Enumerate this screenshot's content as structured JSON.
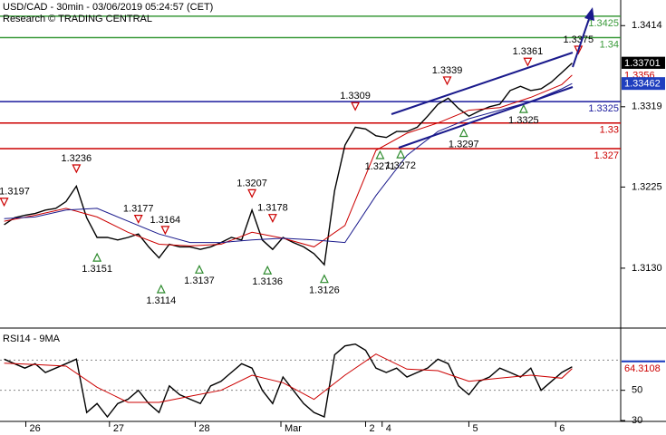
{
  "chart_data": [
    {
      "type": "line",
      "title": "USD/CAD - 30min - 03/06/2019 05:24:57 (CET)",
      "subtitle": "Research © TRADING CENTRAL",
      "xlim": [
        -0.4,
        59.7
      ],
      "ylim": [
        1.3062,
        1.3444
      ],
      "yticks": [
        1.3414,
        1.3319,
        1.3225,
        {
          "value": 1.313,
          "label": "1.3130"
        }
      ],
      "series": [
        {
          "color": "#000000",
          "tag": "box",
          "tag_color": "#000000",
          "x": [
            0,
            1,
            2,
            3,
            4,
            5,
            6,
            7,
            8,
            9,
            10,
            11,
            12,
            13,
            14,
            15,
            16,
            17,
            18,
            19,
            20,
            21,
            22,
            23,
            24,
            25,
            26,
            27,
            28,
            29,
            30,
            31,
            32,
            33,
            34,
            35,
            36,
            37,
            38,
            39,
            40,
            41,
            42,
            43,
            44,
            45,
            46,
            47,
            48,
            49,
            50,
            51,
            52,
            53,
            54,
            55
          ],
          "values": [
            1.3181,
            1.3189,
            1.3192,
            1.3194,
            1.3198,
            1.32,
            1.3208,
            1.3226,
            1.3189,
            1.3166,
            1.3166,
            1.3163,
            1.3166,
            1.317,
            1.3155,
            1.3142,
            1.3158,
            1.3155,
            1.3155,
            1.3152,
            1.3155,
            1.316,
            1.3166,
            1.3163,
            1.3198,
            1.3163,
            1.3152,
            1.3166,
            1.316,
            1.3155,
            1.3147,
            1.3134,
            1.3221,
            1.3274,
            1.3295,
            1.3293,
            1.3285,
            1.3283,
            1.329,
            1.329,
            1.3295,
            1.3308,
            1.3322,
            1.3329,
            1.3317,
            1.3308,
            1.3314,
            1.3319,
            1.3322,
            1.3338,
            1.3343,
            1.3338,
            1.334,
            1.3348,
            1.3359,
            1.33701
          ]
        },
        {
          "color": "#cc0000",
          "tag": "text",
          "tag_color": "#cc0000",
          "x": [
            0,
            3,
            6,
            9,
            12,
            15,
            18,
            21,
            24,
            27,
            30,
            33,
            36,
            39,
            42,
            45,
            48,
            51,
            54,
            55
          ],
          "values": [
            1.3185,
            1.3192,
            1.32,
            1.319,
            1.3172,
            1.3158,
            1.3156,
            1.3158,
            1.3172,
            1.3165,
            1.3155,
            1.318,
            1.3268,
            1.3288,
            1.33,
            1.3315,
            1.3318,
            1.333,
            1.3345,
            1.3356
          ]
        },
        {
          "color": "#1a1a8c",
          "tag": "box",
          "tag_color": "#1f3fbf",
          "x": [
            0,
            3,
            6,
            9,
            12,
            15,
            18,
            21,
            24,
            27,
            30,
            33,
            36,
            39,
            42,
            45,
            48,
            51,
            54,
            55
          ],
          "values": [
            1.3188,
            1.319,
            1.3198,
            1.32,
            1.3185,
            1.317,
            1.316,
            1.316,
            1.3163,
            1.3165,
            1.3163,
            1.316,
            1.3215,
            1.3262,
            1.329,
            1.3305,
            1.3315,
            1.3325,
            1.334,
            1.33462
          ]
        }
      ],
      "levels": [
        {
          "value": 1.3425,
          "color": "#3a9a3a"
        },
        {
          "value": 1.34,
          "color": "#3a9a3a"
        },
        {
          "value": 1.3325,
          "color": "#1a1a9c"
        },
        {
          "value": 1.33,
          "color": "#cc0000"
        },
        {
          "value": 1.327,
          "color": "#cc0000"
        }
      ],
      "pivot_highs": [
        {
          "x": 0,
          "value": 1.3197
        },
        {
          "x": 7,
          "value": 1.3236
        },
        {
          "x": 13,
          "value": 1.3177
        },
        {
          "x": 15.6,
          "value": 1.3164
        },
        {
          "x": 24,
          "value": 1.3207
        },
        {
          "x": 26,
          "value": 1.3178
        },
        {
          "x": 34,
          "value": 1.3309
        },
        {
          "x": 42.9,
          "value": 1.3339
        },
        {
          "x": 50.7,
          "value": 1.3361
        },
        {
          "x": 55.6,
          "value": 1.3375
        }
      ],
      "pivot_lows": [
        {
          "x": 9,
          "value": 1.3151
        },
        {
          "x": 15.2,
          "value": 1.3114
        },
        {
          "x": 18.9,
          "value": 1.3137
        },
        {
          "x": 25.5,
          "value": 1.3136
        },
        {
          "x": 31,
          "value": 1.3126
        },
        {
          "x": 36.4,
          "value": 1.3271
        },
        {
          "x": 38.4,
          "value": 1.3272
        },
        {
          "x": 44.5,
          "value": 1.3297
        },
        {
          "x": 50.3,
          "value": 1.3325
        }
      ]
    },
    {
      "type": "line",
      "title": "RSI14 - 9MA",
      "xlim": [
        -0.4,
        59.7
      ],
      "ylim": [
        29.4,
        88.2
      ],
      "yticks": [
        30,
        50
      ],
      "levels": [
        70,
        50
      ],
      "xticks": [
        {
          "value": 2.1,
          "label": "26"
        },
        {
          "value": 10.2,
          "label": "27"
        },
        {
          "value": 18.5,
          "label": "28"
        },
        {
          "value": 26.8,
          "label": "Mar"
        },
        {
          "value": 35.0,
          "label": "2"
        },
        {
          "value": 36.6,
          "label": "4"
        },
        {
          "value": 45.0,
          "label": "5"
        },
        {
          "value": 53.4,
          "label": "6"
        }
      ],
      "series": [
        {
          "color": "#000000",
          "tag": "box",
          "tag_color": "#1f3fbf",
          "x": [
            0,
            1,
            2,
            3,
            4,
            5,
            6,
            7,
            8,
            9,
            10,
            11,
            12,
            13,
            14,
            15,
            16,
            17,
            18,
            19,
            20,
            21,
            22,
            23,
            24,
            25,
            26,
            27,
            28,
            29,
            30,
            31,
            32,
            33,
            34,
            35,
            36,
            37,
            38,
            39,
            40,
            41,
            42,
            43,
            44,
            45,
            46,
            47,
            48,
            49,
            50,
            51,
            52,
            53,
            54,
            55
          ],
          "values": [
            70.6,
            67.6,
            64.7,
            67.6,
            61.8,
            64.7,
            67.6,
            70.6,
            35.3,
            41.2,
            32.4,
            41.2,
            44.1,
            50.0,
            41.2,
            35.3,
            52.9,
            47.1,
            44.1,
            41.2,
            52.9,
            55.9,
            61.8,
            67.6,
            64.7,
            50.0,
            41.2,
            58.8,
            50.0,
            41.2,
            35.3,
            32.4,
            73.5,
            79.4,
            80.6,
            76.5,
            64.7,
            61.8,
            64.7,
            58.8,
            61.8,
            64.7,
            70.6,
            67.6,
            52.9,
            47.1,
            55.9,
            58.8,
            64.7,
            61.8,
            58.8,
            64.7,
            50.0,
            55.9,
            61.8,
            65.5846
          ]
        },
        {
          "color": "#cc0000",
          "tag": "text",
          "tag_color": "#cc0000",
          "x": [
            0,
            3,
            6,
            9,
            12,
            15,
            18,
            21,
            24,
            27,
            30,
            33,
            36,
            39,
            42,
            45,
            48,
            51,
            54,
            55
          ],
          "values": [
            68,
            67,
            66,
            52,
            42,
            42,
            46,
            50,
            60,
            55,
            44,
            60,
            74,
            64,
            63,
            56,
            58,
            60,
            58,
            64.3108
          ]
        }
      ]
    }
  ]
}
